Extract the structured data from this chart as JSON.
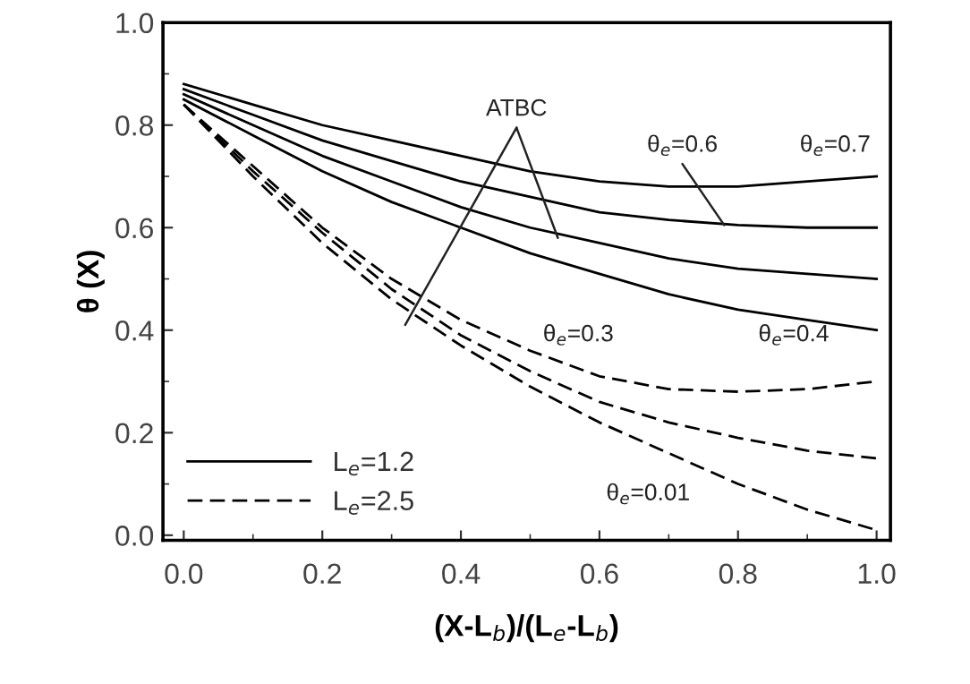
{
  "chart_data": {
    "type": "line",
    "xlabel": "(X-L$_{b}$)/(L$_{e}$-L$_{b}$)",
    "ylabel": "θ (X)",
    "x": [
      0,
      0.1,
      0.2,
      0.3,
      0.4,
      0.5,
      0.6,
      0.7,
      0.8,
      0.9,
      1.0
    ],
    "series": [
      {
        "name": "L$_{e}$=1.2",
        "color": "#000000",
        "line_style": "solid",
        "values": [
          0.88,
          0.84,
          0.8,
          0.77,
          0.74,
          0.71,
          0.69,
          0.68,
          0.68,
          0.69,
          0.7
        ]
      },
      {
        "color": "#000000",
        "line_style": "solid",
        "values": [
          0.87,
          0.82,
          0.77,
          0.73,
          0.69,
          0.66,
          0.63,
          0.615,
          0.605,
          0.6,
          0.6
        ]
      },
      {
        "color": "#000000",
        "line_style": "solid",
        "values": [
          0.86,
          0.8,
          0.74,
          0.69,
          0.64,
          0.6,
          0.57,
          0.54,
          0.52,
          0.51,
          0.5
        ]
      },
      {
        "color": "#000000",
        "line_style": "solid",
        "values": [
          0.85,
          0.78,
          0.71,
          0.65,
          0.6,
          0.55,
          0.51,
          0.47,
          0.44,
          0.42,
          0.4
        ]
      },
      {
        "name": "L$_{e}$=2.5",
        "color": "#000000",
        "line_style": "dashed",
        "values": [
          0.84,
          0.72,
          0.6,
          0.5,
          0.42,
          0.36,
          0.31,
          0.285,
          0.28,
          0.285,
          0.3
        ]
      },
      {
        "color": "#000000",
        "line_style": "dashed",
        "values": [
          0.84,
          0.71,
          0.59,
          0.48,
          0.39,
          0.32,
          0.26,
          0.22,
          0.19,
          0.165,
          0.15
        ]
      },
      {
        "color": "#000000",
        "line_style": "dashed",
        "values": [
          0.84,
          0.7,
          0.57,
          0.46,
          0.37,
          0.29,
          0.22,
          0.16,
          0.1,
          0.05,
          0.01
        ]
      }
    ],
    "annotations": [
      {
        "text": "ATBC",
        "x": 0.54,
        "y": 0.58
      },
      {
        "text": "θ$_{e}$=0.6",
        "x": 0.78,
        "y": 0.605
      },
      "θ$_{e}$=0.7",
      "θ$_{e}$=0.3",
      "θ$_{e}$=0.4",
      "θ$_{e}$=0.01"
    ],
    "xlim": [
      -0.03,
      1.02
    ],
    "ylim": [
      -0.01,
      1.0
    ],
    "xticks": [
      {
        "value": 0,
        "label": "0.0"
      },
      0.2,
      0.4,
      0.6,
      0.8,
      {
        "value": 1,
        "label": "1.0"
      }
    ],
    "yticks": [
      {
        "value": 0,
        "label": "0.0"
      },
      0.2,
      0.4,
      0.6,
      0.8,
      {
        "value": 1,
        "label": "1.0"
      }
    ],
    "legend": "bottom left",
    "grid": false,
    "marker": "none"
  }
}
